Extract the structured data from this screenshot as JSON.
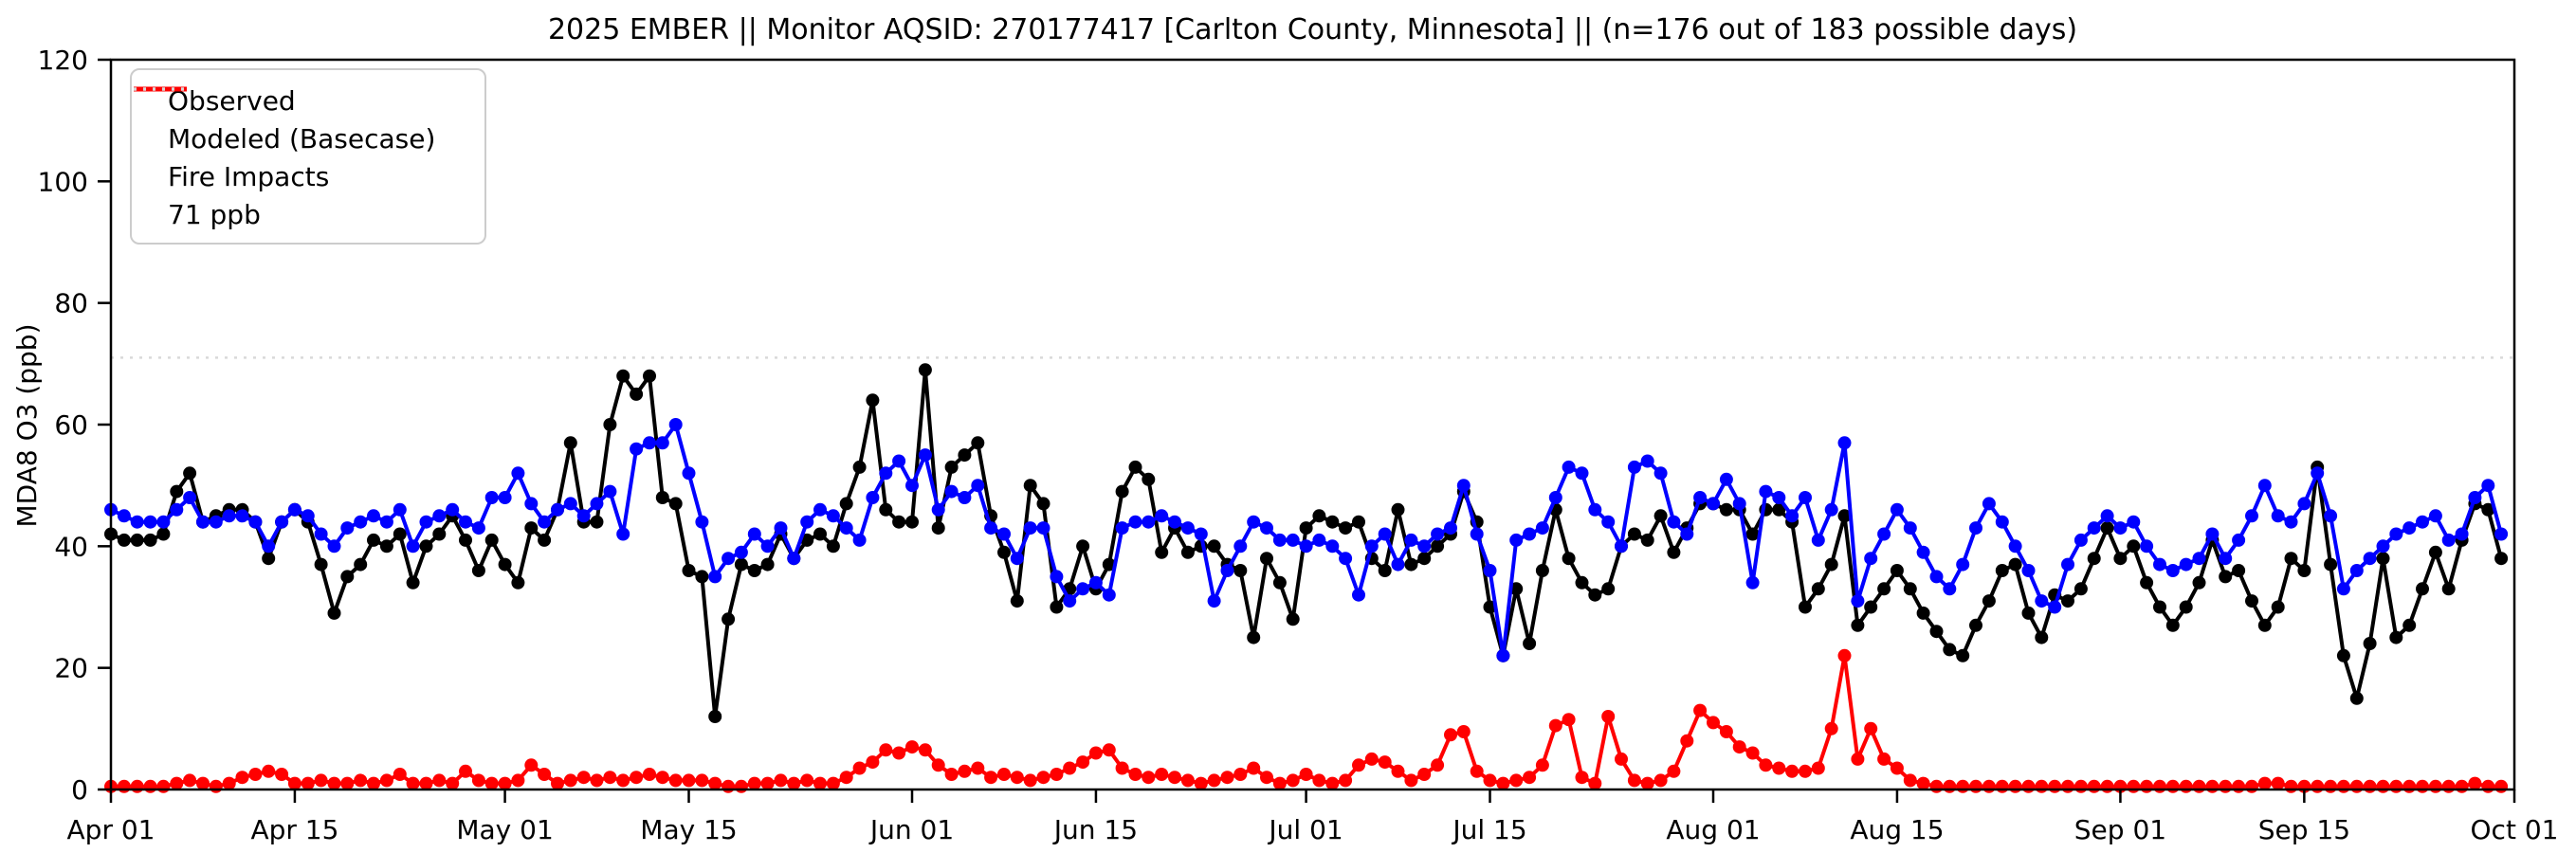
{
  "title": "2025 EMBER || Monitor AQSID: 270177417 [Carlton County, Minnesota] || (n=176 out of 183 possible days)",
  "y_axis": {
    "label": "MDA8 O3 (ppb)",
    "ticks": [
      0,
      20,
      40,
      60,
      80,
      100,
      120
    ],
    "min": 0,
    "max": 120
  },
  "x_axis": {
    "tick_labels": [
      "Apr 01",
      "Apr 15",
      "May 01",
      "May 15",
      "Jun 01",
      "Jun 15",
      "Jul 01",
      "Jul 15",
      "Aug 01",
      "Aug 15",
      "Sep 01",
      "Sep 15",
      "Oct 01"
    ],
    "tick_days": [
      0,
      14,
      30,
      44,
      61,
      75,
      91,
      105,
      122,
      136,
      153,
      167,
      183
    ],
    "total_days": 183
  },
  "legend": [
    {
      "label": "Observed",
      "color": "#000000",
      "style": "solid"
    },
    {
      "label": "Modeled (Basecase)",
      "color": "#0000ff",
      "style": "solid"
    },
    {
      "label": "Fire Impacts",
      "color": "#ff0000",
      "style": "solid"
    },
    {
      "label": "71 ppb",
      "color": "#d9d9d9",
      "style": "dotted"
    }
  ],
  "chart_data": {
    "type": "line",
    "title": "2025 EMBER || Monitor AQSID: 270177417 [Carlton County, Minnesota] || (n=176 out of 183 possible days)",
    "xlabel": "",
    "ylabel": "MDA8 O3 (ppb)",
    "ylim": [
      0,
      120
    ],
    "x_range": [
      "Apr 01",
      "Oct 01"
    ],
    "x_unit": "days since Apr 01",
    "grid": false,
    "legend_position": "upper left",
    "reference_line": {
      "label": "71 ppb",
      "value": 71,
      "color": "#d9d9d9",
      "style": "dotted"
    },
    "x_tick_labels": [
      "Apr 01",
      "Apr 15",
      "May 01",
      "May 15",
      "Jun 01",
      "Jun 15",
      "Jul 01",
      "Jul 15",
      "Aug 01",
      "Aug 15",
      "Sep 01",
      "Sep 15",
      "Oct 01"
    ],
    "x_tick_days": [
      0,
      14,
      30,
      44,
      61,
      75,
      91,
      105,
      122,
      136,
      153,
      167,
      183
    ],
    "series": [
      {
        "name": "Observed",
        "color": "#000000",
        "marker": "circle",
        "values": [
          42,
          41,
          41,
          41,
          42,
          49,
          52,
          44,
          45,
          46,
          46,
          44,
          38,
          44,
          46,
          44,
          37,
          29,
          35,
          37,
          41,
          40,
          42,
          34,
          40,
          42,
          45,
          41,
          36,
          41,
          37,
          34,
          43,
          41,
          46,
          57,
          44,
          44,
          60,
          68,
          65,
          68,
          48,
          47,
          36,
          35,
          12,
          28,
          37,
          36,
          37,
          42,
          38,
          41,
          42,
          40,
          47,
          53,
          64,
          46,
          44,
          44,
          69,
          43,
          53,
          55,
          57,
          45,
          39,
          31,
          50,
          47,
          30,
          33,
          40,
          33,
          37,
          49,
          53,
          51,
          39,
          43,
          39,
          40,
          40,
          37,
          36,
          25,
          38,
          34,
          28,
          43,
          45,
          44,
          43,
          44,
          38,
          36,
          46,
          37,
          38,
          40,
          42,
          49,
          44,
          30,
          22,
          33,
          24,
          36,
          46,
          38,
          34,
          32,
          33,
          40,
          42,
          41,
          45,
          39,
          43,
          47,
          47,
          46,
          46,
          42,
          46,
          46,
          44,
          30,
          33,
          37,
          45,
          27,
          30,
          33,
          36,
          33,
          29,
          26,
          23,
          22,
          27,
          31,
          36,
          37,
          29,
          25,
          32,
          31,
          33,
          38,
          43,
          38,
          40,
          34,
          30,
          27,
          30,
          34,
          41,
          35,
          36,
          31,
          27,
          30,
          38,
          36,
          53,
          37,
          22,
          15,
          24,
          38,
          25,
          27,
          33,
          39,
          33,
          41,
          47,
          46,
          38
        ]
      },
      {
        "name": "Modeled (Basecase)",
        "color": "#0000ff",
        "marker": "circle",
        "values": [
          46,
          45,
          44,
          44,
          44,
          46,
          48,
          44,
          44,
          45,
          45,
          44,
          40,
          44,
          46,
          45,
          42,
          40,
          43,
          44,
          45,
          44,
          46,
          40,
          44,
          45,
          46,
          44,
          43,
          48,
          48,
          52,
          47,
          44,
          46,
          47,
          45,
          47,
          49,
          42,
          56,
          57,
          57,
          60,
          52,
          44,
          35,
          38,
          39,
          42,
          40,
          43,
          38,
          44,
          46,
          45,
          43,
          41,
          48,
          52,
          54,
          50,
          55,
          46,
          49,
          48,
          50,
          43,
          42,
          38,
          43,
          43,
          35,
          31,
          33,
          34,
          32,
          43,
          44,
          44,
          45,
          44,
          43,
          42,
          31,
          36,
          40,
          44,
          43,
          41,
          41,
          40,
          41,
          40,
          38,
          32,
          40,
          42,
          37,
          41,
          40,
          42,
          43,
          50,
          42,
          36,
          22,
          41,
          42,
          43,
          48,
          53,
          52,
          46,
          44,
          40,
          53,
          54,
          52,
          44,
          42,
          48,
          47,
          51,
          47,
          34,
          49,
          48,
          45,
          48,
          41,
          46,
          57,
          31,
          38,
          42,
          46,
          43,
          39,
          35,
          33,
          37,
          43,
          47,
          44,
          40,
          36,
          31,
          30,
          37,
          41,
          43,
          45,
          43,
          44,
          40,
          37,
          36,
          37,
          38,
          42,
          38,
          41,
          45,
          50,
          45,
          44,
          47,
          52,
          45,
          33,
          36,
          38,
          40,
          42,
          43,
          44,
          45,
          41,
          42,
          48,
          50,
          42
        ]
      },
      {
        "name": "Fire Impacts",
        "color": "#ff0000",
        "marker": "circle",
        "values": [
          0.5,
          0.5,
          0.5,
          0.5,
          0.5,
          1,
          1.5,
          1,
          0.5,
          1,
          2,
          2.5,
          3,
          2.5,
          1,
          1,
          1.5,
          1,
          1,
          1.5,
          1,
          1.5,
          2.5,
          1,
          1,
          1.5,
          1,
          3,
          1.5,
          1,
          1,
          1.5,
          4,
          2.5,
          1,
          1.5,
          2,
          1.5,
          2,
          1.5,
          2,
          2.5,
          2,
          1.5,
          1.5,
          1.5,
          1,
          0.5,
          0.5,
          1,
          1,
          1.5,
          1,
          1.5,
          1,
          1,
          2,
          3.5,
          4.5,
          6.5,
          6,
          7,
          6.5,
          4,
          2.5,
          3,
          3.5,
          2,
          2.5,
          2,
          1.5,
          2,
          2.5,
          3.5,
          4.5,
          6,
          6.5,
          3.5,
          2.5,
          2,
          2.5,
          2,
          1.5,
          1,
          1.5,
          2,
          2.5,
          3.5,
          2,
          1,
          1.5,
          2.5,
          1.5,
          1,
          1.5,
          4,
          5,
          4.5,
          3,
          1.5,
          2.5,
          4,
          9,
          9.5,
          3,
          1.5,
          1,
          1.5,
          2,
          4,
          10.5,
          11.5,
          2,
          1,
          12,
          5,
          1.5,
          1,
          1.5,
          3,
          8,
          13,
          11,
          9.5,
          7,
          6,
          4,
          3.5,
          3,
          3,
          3.5,
          10,
          22,
          5,
          10,
          5,
          3.5,
          1.5,
          1,
          0.5,
          0.5,
          0.5,
          0.5,
          0.5,
          0.5,
          0.5,
          0.5,
          0.5,
          0.5,
          0.5,
          0.5,
          0.5,
          0.5,
          0.5,
          0.5,
          0.5,
          0.5,
          0.5,
          0.5,
          0.5,
          0.5,
          0.5,
          0.5,
          0.5,
          1,
          1,
          0.5,
          0.5,
          0.5,
          0.5,
          0.5,
          0.5,
          0.5,
          0.5,
          0.5,
          0.5,
          0.5,
          0.5,
          0.5,
          0.5,
          1,
          0.5,
          0.5
        ]
      }
    ]
  }
}
